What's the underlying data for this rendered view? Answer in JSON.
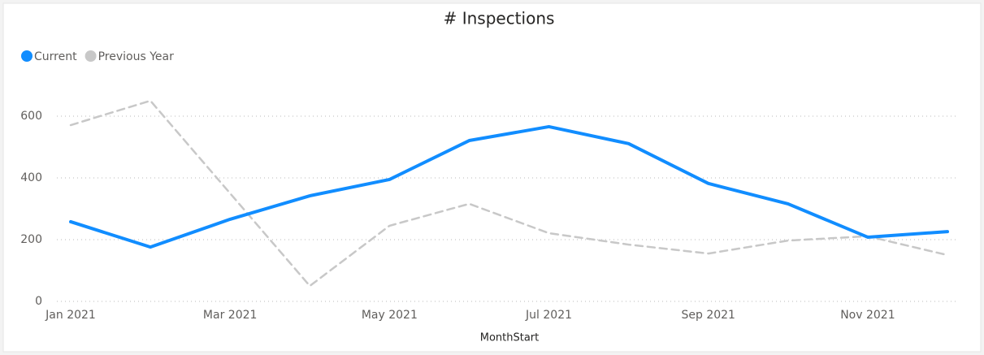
{
  "chart_data": {
    "type": "line",
    "title": "# Inspections",
    "x_label": "MonthStart",
    "categories": [
      "Jan 2021",
      null,
      "Mar 2021",
      null,
      "May 2021",
      null,
      "Jul 2021",
      null,
      "Sep 2021",
      null,
      "Nov 2021",
      null
    ],
    "series": [
      {
        "name": "Current",
        "color": "#118DFF",
        "dashed": false,
        "values": [
          258,
          176,
          266,
          342,
          395,
          521,
          566,
          511,
          382,
          316,
          208,
          226
        ]
      },
      {
        "name": "Previous Year",
        "color": "#C8C8C8",
        "dashed": true,
        "values": [
          571,
          650,
          350,
          50,
          245,
          316,
          221,
          184,
          155,
          197,
          211,
          150
        ]
      }
    ],
    "ylim": [
      0,
      700
    ],
    "yticks": [
      0,
      200,
      400,
      600
    ],
    "grid": true,
    "legend": "top-left"
  }
}
